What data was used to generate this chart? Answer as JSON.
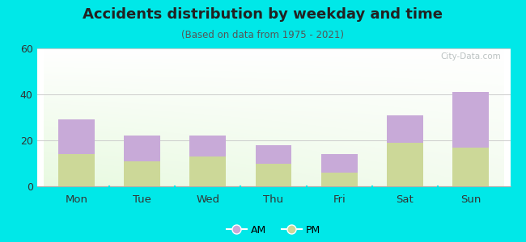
{
  "categories": [
    "Mon",
    "Tue",
    "Wed",
    "Thu",
    "Fri",
    "Sat",
    "Sun"
  ],
  "pm_values": [
    14,
    11,
    13,
    10,
    6,
    19,
    17
  ],
  "am_values": [
    15,
    11,
    9,
    8,
    8,
    12,
    24
  ],
  "am_color": "#c8aad8",
  "pm_color": "#ccd898",
  "title": "Accidents distribution by weekday and time",
  "subtitle": "(Based on data from 1975 - 2021)",
  "ylim": [
    0,
    60
  ],
  "yticks": [
    0,
    20,
    40,
    60
  ],
  "background_color": "#00e8e8",
  "watermark": "City-Data.com",
  "bar_width": 0.55
}
